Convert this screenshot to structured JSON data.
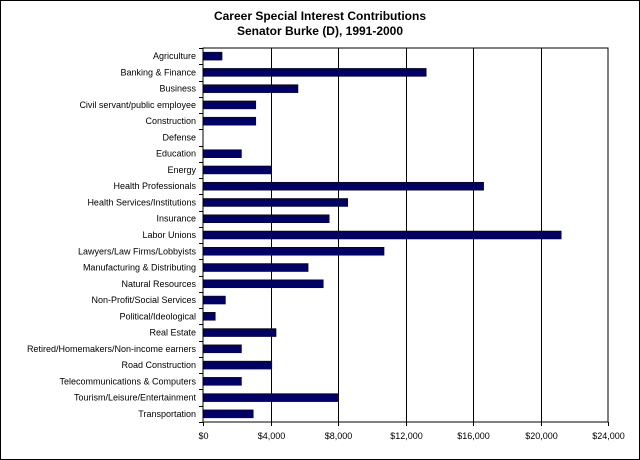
{
  "chart_data": {
    "type": "bar",
    "orientation": "horizontal",
    "title": "Career Special Interest Contributions",
    "subtitle": "Senator Burke (D), 1991-2000",
    "xlabel": "",
    "ylabel": "",
    "xlim": [
      0,
      24000
    ],
    "tick_values": [
      0,
      4000,
      8000,
      12000,
      16000,
      20000,
      24000
    ],
    "tick_labels": [
      "$0",
      "$4,000",
      "$8,000",
      "$12,000",
      "$16,000",
      "$20,000",
      "$24,000"
    ],
    "grid": "vertical",
    "legend": "none",
    "bar_color": "#000066",
    "categories": [
      "Agriculture",
      "Banking & Finance",
      "Business",
      "Civil servant/public employee",
      "Construction",
      "Defense",
      "Education",
      "Energy",
      "Health Professionals",
      "Health Services/Institutions",
      "Insurance",
      "Labor Unions",
      "Lawyers/Law Firms/Lobbyists",
      "Manufacturing & Distributing",
      "Natural Resources",
      "Non-Profit/Social Services",
      "Political/Ideological",
      "Real Estate",
      "Retired/Homemakers/Non-income earners",
      "Road Construction",
      "Telecommunications & Computers",
      "Tourism/Leisure/Entertainment",
      "Transportation"
    ],
    "values": [
      1100,
      13200,
      5600,
      3100,
      3100,
      0,
      2250,
      4000,
      16600,
      8550,
      7450,
      21200,
      10700,
      6200,
      7100,
      1300,
      700,
      4300,
      2250,
      4050,
      2250,
      7950,
      2950
    ]
  }
}
